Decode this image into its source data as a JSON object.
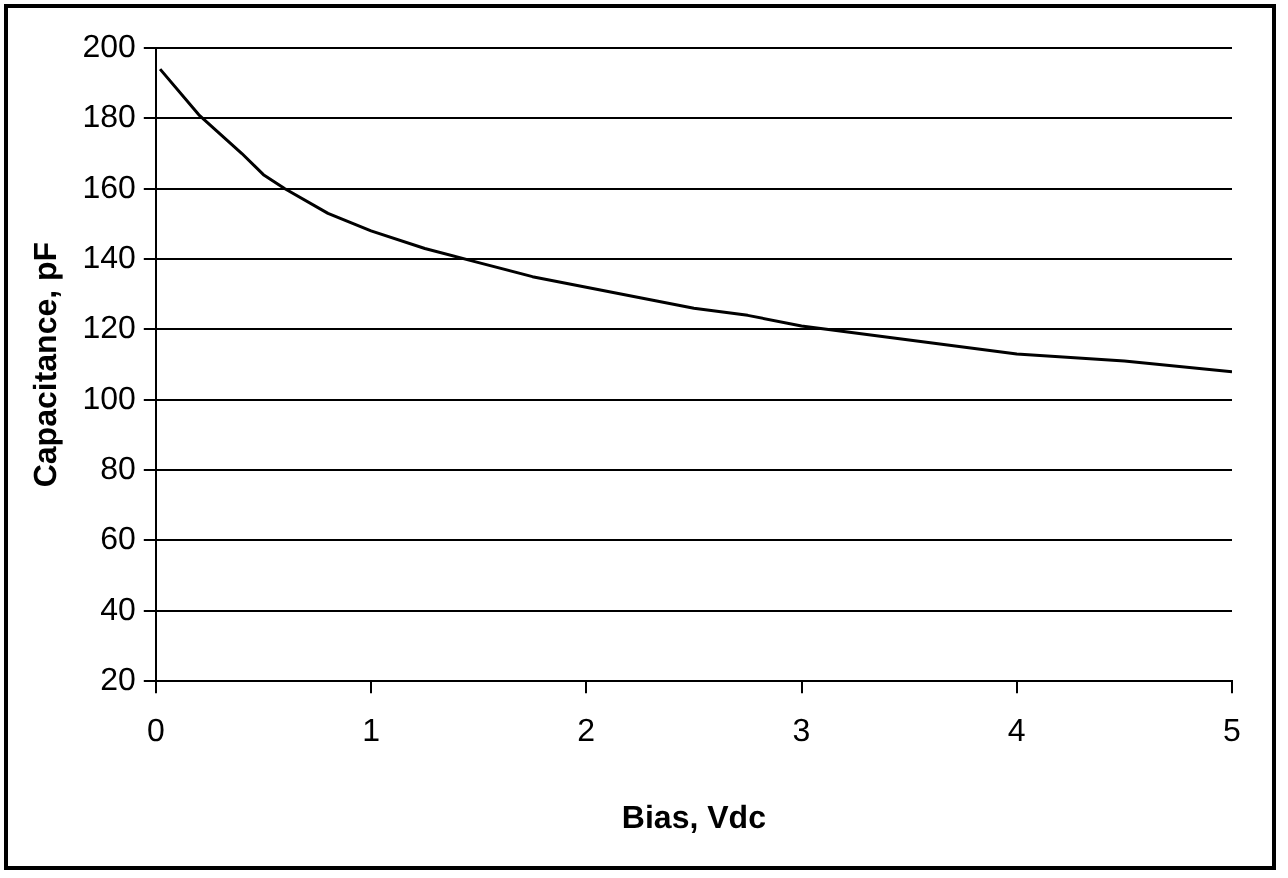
{
  "chart_data": {
    "type": "line",
    "xlabel": "Bias, Vdc",
    "ylabel": "Capacitance, pF",
    "x": [
      0.02,
      0.2,
      0.4,
      0.5,
      0.6,
      0.8,
      1,
      1.25,
      1.5,
      1.75,
      2,
      2.25,
      2.5,
      2.75,
      3,
      3.5,
      4,
      4.5,
      5
    ],
    "series": [
      {
        "color": "#000000",
        "values": [
          194,
          181,
          170,
          164,
          160,
          153,
          148,
          143,
          139,
          135,
          132,
          129,
          126,
          124,
          121,
          117,
          113,
          111,
          108
        ]
      }
    ],
    "xlim": [
      0,
      5
    ],
    "xticks": [
      0,
      1,
      2,
      3,
      4,
      5
    ],
    "ylim": [
      20,
      200
    ],
    "yticks": [
      20,
      40,
      60,
      80,
      100,
      120,
      140,
      160,
      180,
      200
    ],
    "grid": "y",
    "legend": false,
    "marker": "none",
    "line_style": "solid"
  }
}
